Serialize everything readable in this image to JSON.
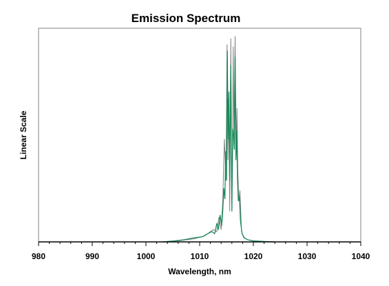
{
  "chart_data": {
    "type": "line",
    "title": "Emission Spectrum",
    "xlabel": "Wavelength, nm",
    "ylabel": "Linear Scale",
    "xlim": [
      980,
      1040
    ],
    "ylim": [
      0,
      1
    ],
    "x_major_ticks": [
      980,
      990,
      1000,
      1010,
      1020,
      1030,
      1040
    ],
    "x_minor_step": 2,
    "y_tick_labels": false,
    "grid": false,
    "legend": "none",
    "series": [
      {
        "color": "#808080",
        "x": [
          1003.0,
          1006.0,
          1009.0,
          1011.0,
          1012.5,
          1013.2,
          1013.6,
          1014.0,
          1014.3,
          1014.6,
          1014.9,
          1015.1,
          1015.25,
          1015.4,
          1015.6,
          1015.8,
          1015.95,
          1016.1,
          1016.25,
          1016.4,
          1016.6,
          1016.8,
          1016.95,
          1017.1,
          1017.3,
          1017.5,
          1017.8,
          1018.2,
          1019.0,
          1020.0,
          1022.0,
          1024.0
        ],
        "y": [
          0.0,
          0.005,
          0.015,
          0.03,
          0.06,
          0.05,
          0.12,
          0.06,
          0.2,
          0.5,
          0.3,
          0.96,
          0.4,
          0.7,
          0.15,
          0.99,
          0.2,
          0.35,
          0.95,
          0.5,
          1.0,
          0.45,
          0.65,
          0.35,
          0.2,
          0.25,
          0.05,
          0.02,
          0.01,
          0.004,
          0.002,
          0.0
        ]
      },
      {
        "color": "#1a8a5a",
        "x": [
          1003.0,
          1005.0,
          1007.0,
          1009.0,
          1010.5,
          1011.5,
          1012.3,
          1012.8,
          1013.2,
          1013.5,
          1013.8,
          1014.1,
          1014.3,
          1014.5,
          1014.7,
          1014.85,
          1015.0,
          1015.15,
          1015.3,
          1015.45,
          1015.6,
          1015.8,
          1016.0,
          1016.15,
          1016.3,
          1016.45,
          1016.6,
          1016.75,
          1016.9,
          1017.05,
          1017.2,
          1017.4,
          1017.6,
          1017.9,
          1018.3,
          1019.0,
          1020.0,
          1022.0,
          1024.0
        ],
        "y": [
          0.0,
          0.004,
          0.01,
          0.02,
          0.025,
          0.04,
          0.05,
          0.04,
          0.09,
          0.06,
          0.13,
          0.08,
          0.15,
          0.26,
          0.21,
          0.44,
          0.3,
          0.93,
          0.5,
          0.73,
          0.3,
          0.86,
          0.15,
          0.55,
          0.52,
          0.45,
          0.9,
          0.4,
          0.54,
          0.3,
          0.2,
          0.22,
          0.1,
          0.04,
          0.02,
          0.01,
          0.005,
          0.002,
          0.0
        ]
      }
    ]
  }
}
